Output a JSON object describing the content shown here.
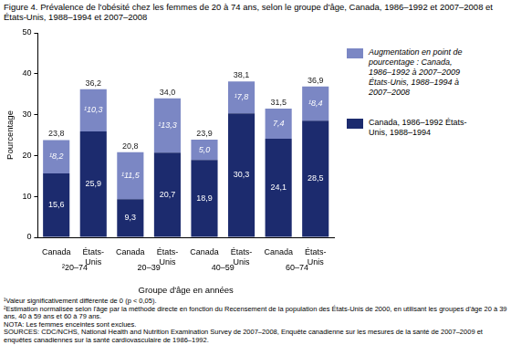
{
  "chart_data": {
    "type": "bar",
    "title": "Figure 4. Prévalence de l'obésité chez les femmes de 20 à 74 ans, selon le groupe d'âge, Canada, 1986–1992 et 2007–2008 et États-Unis, 1988–1994 et 2007–2008",
    "x_label": "Groupe d'âge en années",
    "y_label": "Pourcentage",
    "categories": [
      "Canada",
      "États-Unis",
      "Canada",
      "États-Unis",
      "Canada",
      "États-Unis",
      "Canada",
      "États-Unis"
    ],
    "category_groups": [
      "²20–74",
      "²20–74",
      "20–39",
      "20–39",
      "40–59",
      "40–59",
      "60–74",
      "60–74"
    ],
    "series": [
      {
        "name": "Canada, 1986–1992 États-Unis, 1988–1994",
        "color": "#1c2b6e",
        "values": [
          15.6,
          25.9,
          9.3,
          20.7,
          18.9,
          30.3,
          24.1,
          28.5
        ],
        "value_labels": [
          "15,6",
          "25,9",
          "9,3",
          "20,7",
          "18,9",
          "30,3",
          "24,1",
          "28,5"
        ]
      },
      {
        "name": "Augmentation en point de pourcentage : Canada, 1986–1992 à 2007–2009 États-Unis, 1988–1994 à 2007–2008",
        "color": "#7b87c4",
        "values": [
          8.2,
          10.3,
          11.5,
          13.3,
          5.0,
          7.8,
          7.4,
          8.4
        ],
        "value_labels": [
          "¹8,2",
          "¹10,3",
          "¹11,5",
          "¹13,3",
          "5,0",
          "¹7,8",
          "7,4",
          "¹8,4"
        ]
      }
    ],
    "total_labels": [
      "23,8",
      "36,2",
      "20,8",
      "34,0",
      "23,9",
      "38,1",
      "31,5",
      "36,9"
    ],
    "stacked": true,
    "data_labels": true,
    "ylim": [
      0,
      50
    ],
    "yticks": [
      0,
      10,
      20,
      30,
      40,
      50
    ],
    "grid": false,
    "legend": "right",
    "annotations": [
      "¹Valeur significativement différente de 0 (p < 0,05).",
      "²Estimation normalisée selon l'âge par la méthode directe en fonction du Recensement de la population des États-Unis de 2000, en utilisant les groupes d'âge 20 à 39 ans, 40 à 59 ans et 60 à 79 ans.",
      "NOTA: Les femmes enceintes sont exclues.",
      "SOURCES: CDC/NCHS, National Health and Nutrition Examination Survey de 2007–2008, Enquête canadienne sur les mesures de la santé de 2007–2009 et enquêtes canadiennes sur la santé cardiovasculaire de 1986–1992."
    ]
  }
}
